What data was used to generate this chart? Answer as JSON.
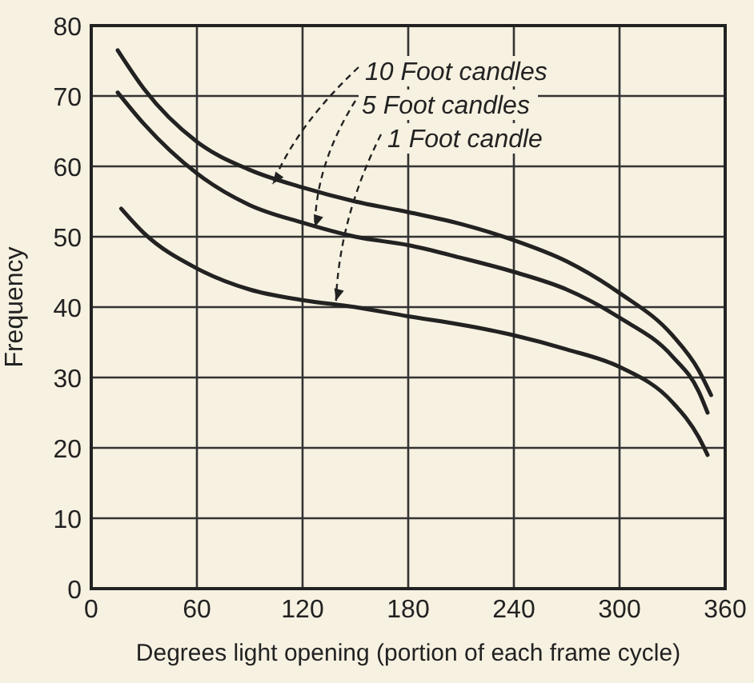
{
  "chart_data": {
    "type": "line",
    "xlabel": "Degrees light opening (portion of each frame cycle)",
    "ylabel": "Frequency",
    "xlim": [
      0,
      360
    ],
    "xticks": [
      0,
      60,
      120,
      180,
      240,
      300,
      360
    ],
    "ylim": [
      0,
      80
    ],
    "yticks": [
      0,
      10,
      20,
      30,
      40,
      50,
      60,
      70,
      80
    ],
    "grid": true,
    "line_style": "solid",
    "series": [
      {
        "color": "#222222",
        "x": [
          15,
          30,
          60,
          90,
          120,
          150,
          180,
          210,
          240,
          270,
          300,
          330,
          345,
          352
        ],
        "values": [
          76.5,
          71,
          63.5,
          59.5,
          57,
          55,
          53.5,
          51.8,
          49.5,
          46.5,
          42,
          36,
          31,
          27.5
        ]
      },
      {
        "color": "#222222",
        "x": [
          15,
          30,
          60,
          90,
          120,
          150,
          180,
          210,
          240,
          270,
          300,
          330,
          345,
          350
        ],
        "values": [
          70.5,
          66,
          59,
          54.5,
          52,
          50,
          48.8,
          47,
          45,
          42.5,
          38.5,
          33,
          28,
          25
        ]
      },
      {
        "color": "#222222",
        "x": [
          17,
          30,
          60,
          90,
          120,
          150,
          180,
          210,
          240,
          270,
          300,
          330,
          345,
          350
        ],
        "values": [
          54,
          50.5,
          45.5,
          42.5,
          41,
          40,
          38.7,
          37.5,
          36,
          34,
          31.5,
          26.5,
          21.5,
          19
        ]
      }
    ],
    "annotations": [
      {
        "text": "10 Foot candles",
        "x": 103,
        "y": 57.5
      },
      {
        "text": "5 Foot candles",
        "x": 127,
        "y": 51.4
      },
      {
        "text": "1 Foot candle",
        "x": 139,
        "y": 40.9
      }
    ]
  }
}
